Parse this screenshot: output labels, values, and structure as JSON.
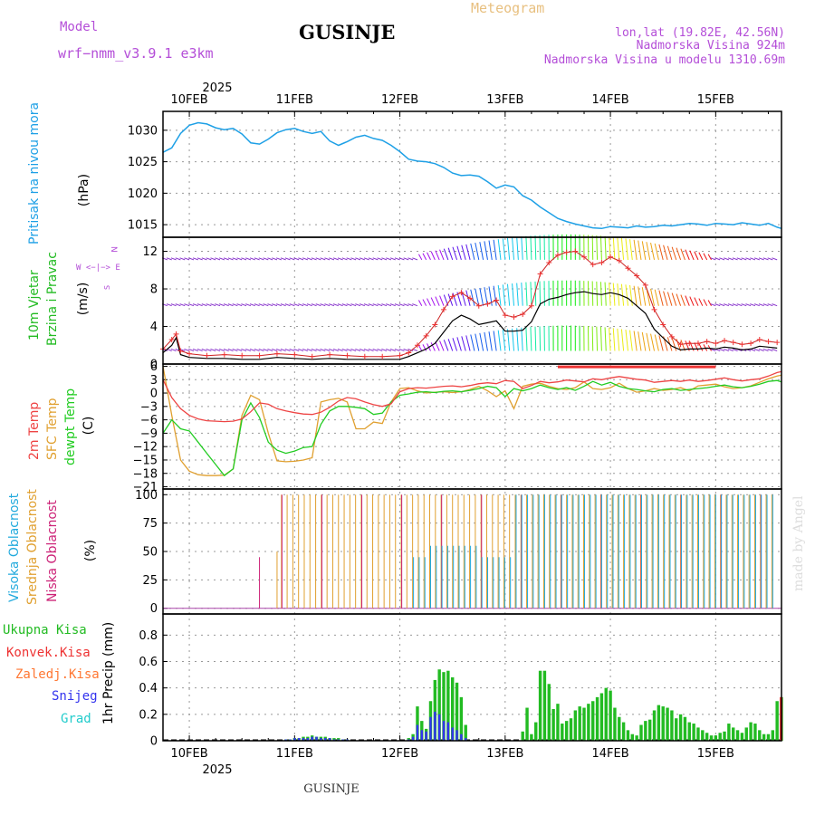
{
  "header": {
    "model_label": "Model",
    "model_name": "wrf−nmm_v3.9.1  e3km",
    "station": "GUSINJE",
    "meteogram": "Meteogram",
    "lonlat": "lon,lat (19.82E, 42.56N)",
    "altitude": "Nadmorska Visina 924m",
    "model_altitude": "Nadmorska Visina u modelu 1310.69m",
    "watermark": "made by Angel",
    "footer_station": "GUSINJE"
  },
  "colors": {
    "pressure": "#1ea0e6",
    "wind": "#22bb22",
    "temp2m": "#ee4444",
    "sfc": "#e0a030",
    "dewpt": "#22cc22",
    "high_cloud": "#22aadd",
    "mid_cloud": "#e0a030",
    "low_cloud": "#cc2277",
    "model": "#b44ed8",
    "total_precip": "#22bb22",
    "conv_precip": "#ee3333",
    "frozen_precip": "#ff7733",
    "snow": "#3333ee",
    "hail": "#22cccc"
  },
  "time_axis": {
    "year_top": "2025",
    "year_bottom": "2025",
    "days": [
      "10FEB",
      "11FEB",
      "12FEB",
      "13FEB",
      "14FEB",
      "15FEB"
    ],
    "start_hour": -6,
    "end_hour": 135
  },
  "chart_data": [
    {
      "type": "line",
      "title": "Pritisak na nivou mora",
      "ylabel": "(hPa)",
      "ylim": [
        1013,
        1033
      ],
      "yticks": [
        "1015",
        "1020",
        "1025",
        "1030"
      ],
      "x": [
        -6,
        -4,
        -2,
        0,
        2,
        4,
        6,
        8,
        10,
        12,
        14,
        16,
        18,
        20,
        22,
        24,
        26,
        28,
        30,
        32,
        34,
        36,
        38,
        40,
        42,
        44,
        46,
        48,
        50,
        52,
        54,
        56,
        58,
        60,
        62,
        64,
        66,
        68,
        70,
        72,
        74,
        76,
        78,
        80,
        82,
        84,
        86,
        88,
        90,
        92,
        94,
        96,
        98,
        100,
        102,
        104,
        106,
        108,
        110,
        112,
        114,
        116,
        118,
        120,
        122,
        124,
        126,
        128,
        130,
        132,
        134,
        135
      ],
      "values": [
        1026.5,
        1027.2,
        1029.5,
        1030.8,
        1031.2,
        1031.0,
        1030.4,
        1030.1,
        1030.3,
        1029.4,
        1028.0,
        1027.8,
        1028.6,
        1029.6,
        1030.1,
        1030.3,
        1029.8,
        1029.5,
        1029.8,
        1028.3,
        1027.6,
        1028.2,
        1028.9,
        1029.2,
        1028.7,
        1028.4,
        1027.6,
        1026.6,
        1025.4,
        1025.1,
        1025.0,
        1024.7,
        1024.1,
        1023.2,
        1022.8,
        1022.9,
        1022.7,
        1021.8,
        1020.8,
        1021.3,
        1021.0,
        1019.6,
        1018.9,
        1017.8,
        1016.9,
        1016.0,
        1015.5,
        1015.1,
        1014.8,
        1014.5,
        1014.4,
        1014.7,
        1014.6,
        1014.5,
        1014.8,
        1014.6,
        1014.7,
        1014.9,
        1014.8,
        1015.0,
        1015.2,
        1015.1,
        1014.9,
        1015.2,
        1015.1,
        1015.0,
        1015.3,
        1015.1,
        1014.9,
        1015.2,
        1014.6,
        1014.4
      ]
    },
    {
      "type": "line",
      "title": "10m Vjetar",
      "subtitle": "Brzina i Pravac",
      "ylabel": "(m/s)",
      "ylim": [
        0,
        13.5
      ],
      "yticks": [
        "0",
        "4",
        "8",
        "12"
      ],
      "compass": "N",
      "compass_w": "W <−|−> E",
      "compass_s": "S",
      "x": [
        -6,
        -4,
        -3,
        -2,
        0,
        4,
        8,
        12,
        16,
        20,
        24,
        28,
        32,
        36,
        40,
        44,
        48,
        50,
        52,
        54,
        56,
        58,
        60,
        62,
        64,
        66,
        68,
        70,
        72,
        74,
        76,
        78,
        80,
        82,
        84,
        86,
        88,
        90,
        92,
        94,
        96,
        98,
        100,
        102,
        104,
        106,
        108,
        110,
        112,
        114,
        116,
        118,
        120,
        122,
        124,
        126,
        128,
        130,
        132,
        134
      ],
      "values": [
        1.2,
        2.0,
        2.8,
        1.0,
        0.7,
        0.6,
        0.6,
        0.5,
        0.5,
        0.7,
        0.6,
        0.5,
        0.6,
        0.5,
        0.5,
        0.5,
        0.5,
        0.8,
        1.2,
        1.6,
        2.2,
        3.4,
        4.6,
        5.2,
        4.8,
        4.2,
        4.4,
        4.6,
        3.5,
        3.5,
        3.6,
        4.5,
        6.4,
        6.9,
        7.1,
        7.4,
        7.6,
        7.7,
        7.5,
        7.4,
        7.6,
        7.4,
        7.0,
        6.2,
        5.4,
        3.7,
        2.8,
        1.9,
        1.5,
        1.6,
        1.6,
        1.7,
        1.6,
        1.8,
        1.7,
        1.5,
        1.6,
        1.9,
        1.8,
        1.7
      ],
      "gust_values": [
        1.6,
        2.6,
        3.2,
        1.4,
        1.1,
        0.9,
        1.0,
        0.9,
        0.9,
        1.1,
        1.0,
        0.8,
        1.0,
        0.9,
        0.8,
        0.8,
        0.9,
        1.2,
        2.0,
        3.0,
        4.2,
        5.8,
        7.2,
        7.6,
        7.0,
        6.2,
        6.4,
        6.8,
        5.2,
        5.0,
        5.3,
        6.2,
        9.6,
        10.8,
        11.6,
        11.9,
        12.0,
        11.4,
        10.6,
        10.8,
        11.4,
        11.0,
        10.2,
        9.4,
        8.4,
        5.8,
        4.2,
        2.9,
        2.1,
        2.2,
        2.2,
        2.4,
        2.2,
        2.5,
        2.3,
        2.1,
        2.2,
        2.6,
        2.4,
        2.3
      ],
      "barb_levels": [
        1.4,
        6.2,
        11.1
      ]
    },
    {
      "type": "line",
      "title": "2m Temp",
      "ylabel": "(C)",
      "ylim": [
        -21.5,
        6.5
      ],
      "yticks": [
        "6",
        "3",
        "0",
        "−3",
        "−6",
        "−9",
        "−12",
        "−15",
        "−18",
        "−21"
      ],
      "series": [
        {
          "name": "2m Temp",
          "x": [
            -6,
            -4,
            -2,
            0,
            2,
            4,
            6,
            8,
            10,
            12,
            14,
            16,
            18,
            20,
            22,
            24,
            26,
            28,
            30,
            32,
            34,
            36,
            38,
            40,
            42,
            44,
            46,
            48,
            50,
            52,
            54,
            56,
            58,
            60,
            62,
            64,
            66,
            68,
            70,
            72,
            74,
            76,
            78,
            80,
            82,
            84,
            86,
            88,
            90,
            92,
            94,
            96,
            98,
            100,
            102,
            104,
            106,
            108,
            110,
            112,
            114,
            116,
            118,
            120,
            122,
            124,
            126,
            128,
            130,
            132,
            134,
            135
          ],
          "values": [
            3.0,
            -1.0,
            -3.5,
            -5.0,
            -5.8,
            -6.2,
            -6.3,
            -6.4,
            -6.3,
            -5.8,
            -4.2,
            -2.2,
            -2.5,
            -3.5,
            -4.0,
            -4.4,
            -4.7,
            -4.8,
            -4.3,
            -3.2,
            -1.8,
            -1.0,
            -1.3,
            -2.0,
            -2.6,
            -3.0,
            -2.4,
            0.3,
            1.0,
            1.2,
            1.1,
            1.3,
            1.5,
            1.6,
            1.4,
            1.7,
            2.1,
            2.3,
            2.1,
            2.8,
            2.6,
            1.0,
            1.7,
            2.6,
            2.3,
            2.5,
            2.9,
            2.7,
            2.5,
            3.2,
            3.0,
            3.4,
            3.7,
            3.4,
            3.1,
            2.9,
            2.4,
            2.6,
            2.8,
            2.6,
            2.9,
            2.6,
            2.8,
            3.1,
            3.4,
            3.0,
            2.7,
            3.0,
            3.2,
            3.8,
            4.6,
            4.8
          ]
        },
        {
          "name": "SFC Temp",
          "x": [
            -6,
            -4,
            -2,
            0,
            2,
            4,
            6,
            8,
            10,
            12,
            14,
            16,
            18,
            20,
            22,
            24,
            26,
            28,
            30,
            32,
            34,
            36,
            38,
            40,
            42,
            44,
            46,
            48,
            50,
            52,
            54,
            56,
            58,
            60,
            62,
            64,
            66,
            68,
            70,
            72,
            74,
            76,
            78,
            80,
            82,
            84,
            86,
            88,
            90,
            92,
            94,
            96,
            98,
            100,
            102,
            104,
            106,
            108,
            110,
            112,
            114,
            116,
            118,
            120,
            122,
            124,
            126,
            128,
            130,
            132,
            134,
            135
          ],
          "values": [
            6.0,
            -5.0,
            -15.0,
            -17.5,
            -18.3,
            -18.5,
            -18.5,
            -18.4,
            -17.0,
            -5.0,
            -0.5,
            -1.5,
            -9.0,
            -15.2,
            -15.4,
            -15.3,
            -15.0,
            -14.5,
            -2.0,
            -1.5,
            -1.2,
            -2.0,
            -8.0,
            -8.0,
            -6.5,
            -6.8,
            -2.0,
            1.0,
            1.2,
            0.5,
            0.0,
            0.2,
            0.3,
            0.1,
            0.3,
            0.8,
            1.5,
            0.5,
            -0.8,
            0.5,
            -3.5,
            1.5,
            2.0,
            2.2,
            1.5,
            1.0,
            0.8,
            1.2,
            2.5,
            1.0,
            0.8,
            1.2,
            2.2,
            1.0,
            0.2,
            0.5,
            1.0,
            0.6,
            0.8,
            1.2,
            0.5,
            1.6,
            1.8,
            2.0,
            1.4,
            1.0,
            1.2,
            1.6,
            2.4,
            3.2,
            3.8,
            4.0
          ]
        },
        {
          "name": "dewpt Temp",
          "x": [
            -6,
            -4,
            -2,
            0,
            2,
            4,
            6,
            8,
            10,
            12,
            14,
            16,
            18,
            20,
            22,
            24,
            26,
            28,
            30,
            32,
            34,
            36,
            38,
            40,
            42,
            44,
            46,
            48,
            50,
            52,
            54,
            56,
            58,
            60,
            62,
            64,
            66,
            68,
            70,
            72,
            74,
            76,
            78,
            80,
            82,
            84,
            86,
            88,
            90,
            92,
            94,
            96,
            98,
            100,
            102,
            104,
            106,
            108,
            110,
            112,
            114,
            116,
            118,
            120,
            122,
            124,
            126,
            128,
            130,
            132,
            134,
            135
          ],
          "values": [
            -9.0,
            -6.0,
            -8.0,
            -8.5,
            -11.0,
            -13.5,
            -16.0,
            -18.5,
            -17.0,
            -6.0,
            -2.2,
            -5.5,
            -11.0,
            -12.8,
            -13.5,
            -13.0,
            -12.2,
            -12.0,
            -7.0,
            -4.0,
            -3.0,
            -3.0,
            -3.2,
            -3.5,
            -4.8,
            -4.5,
            -2.0,
            -0.5,
            -0.2,
            0.2,
            0.3,
            0.1,
            0.4,
            0.5,
            0.3,
            0.6,
            1.0,
            1.5,
            1.2,
            -0.8,
            1.0,
            0.5,
            1.0,
            1.8,
            1.2,
            0.8,
            1.2,
            0.6,
            1.5,
            2.6,
            1.8,
            2.4,
            1.5,
            1.0,
            0.8,
            0.5,
            0.3,
            0.8,
            1.0,
            0.6,
            0.8,
            1.0,
            1.2,
            1.5,
            1.8,
            1.4,
            1.2,
            1.5,
            2.0,
            2.6,
            2.8,
            2.5
          ]
        }
      ]
    },
    {
      "type": "bar",
      "title": "Visoka Oblacnost",
      "ylabel": "(%)",
      "ylim": [
        -5,
        105
      ],
      "yticks": [
        "0",
        "25",
        "50",
        "75",
        "100"
      ],
      "series_names": [
        "Visoka Oblacnost",
        "Srednja Oblacnost",
        "Niska Oblacnost"
      ],
      "start_hour": 16,
      "end_hour": 135
    },
    {
      "type": "bar",
      "title": "1hr Precip",
      "ylabel": "(mm)",
      "ylim": [
        0,
        0.96
      ],
      "yticks": [
        "0",
        "0.2",
        "0.4",
        "0.6",
        "0.8"
      ],
      "legend": [
        "Ukupna Kisa",
        "Konvek.Kisa",
        "Zaledj.Kisa",
        "Snijeg",
        "Grad"
      ],
      "x": [
        22,
        23,
        24,
        25,
        26,
        27,
        28,
        29,
        30,
        31,
        32,
        33,
        34,
        35,
        36,
        50,
        51,
        52,
        53,
        54,
        55,
        56,
        57,
        58,
        59,
        60,
        61,
        62,
        63,
        76,
        77,
        78,
        79,
        80,
        81,
        82,
        83,
        84,
        85,
        86,
        87,
        88,
        89,
        90,
        91,
        92,
        93,
        94,
        95,
        96,
        97,
        98,
        99,
        100,
        101,
        102,
        103,
        104,
        105,
        106,
        107,
        108,
        109,
        110,
        111,
        112,
        113,
        114,
        115,
        116,
        117,
        118,
        119,
        120,
        121,
        122,
        123,
        124,
        125,
        126,
        127,
        128,
        129,
        130,
        131,
        132,
        133,
        134,
        135
      ],
      "values": [
        0.01,
        0.01,
        0.02,
        0.02,
        0.03,
        0.03,
        0.04,
        0.03,
        0.03,
        0.03,
        0.02,
        0.02,
        0.02,
        0.01,
        0.01,
        0.02,
        0.05,
        0.26,
        0.15,
        0.09,
        0.3,
        0.46,
        0.54,
        0.52,
        0.53,
        0.48,
        0.44,
        0.33,
        0.12,
        0.07,
        0.25,
        0.05,
        0.14,
        0.53,
        0.53,
        0.43,
        0.24,
        0.28,
        0.13,
        0.15,
        0.17,
        0.23,
        0.26,
        0.25,
        0.28,
        0.3,
        0.33,
        0.36,
        0.4,
        0.38,
        0.25,
        0.18,
        0.14,
        0.08,
        0.05,
        0.04,
        0.12,
        0.15,
        0.16,
        0.23,
        0.27,
        0.26,
        0.25,
        0.23,
        0.17,
        0.2,
        0.18,
        0.14,
        0.13,
        0.1,
        0.08,
        0.06,
        0.04,
        0.04,
        0.06,
        0.07,
        0.13,
        0.1,
        0.08,
        0.06,
        0.1,
        0.14,
        0.13,
        0.08,
        0.05,
        0.05,
        0.08,
        0.3,
        0.33
      ],
      "snow_values": [
        0.01,
        0.01,
        0.02,
        0.02,
        0.02,
        0.02,
        0.03,
        0.03,
        0.02,
        0.02,
        0.02,
        0.01,
        0.01,
        0.01,
        0.01,
        0.01,
        0.03,
        0.12,
        0.08,
        0.07,
        0.18,
        0.22,
        0.2,
        0.15,
        0.14,
        0.1,
        0.08,
        0.05,
        0.02,
        0,
        0,
        0,
        0,
        0,
        0,
        0,
        0,
        0,
        0,
        0,
        0,
        0,
        0,
        0,
        0,
        0,
        0,
        0,
        0,
        0,
        0,
        0,
        0,
        0,
        0,
        0,
        0,
        0,
        0,
        0,
        0,
        0,
        0,
        0,
        0,
        0,
        0,
        0,
        0,
        0,
        0,
        0,
        0,
        0,
        0,
        0,
        0,
        0,
        0,
        0,
        0,
        0,
        0,
        0,
        0,
        0,
        0,
        0,
        0
      ]
    }
  ]
}
